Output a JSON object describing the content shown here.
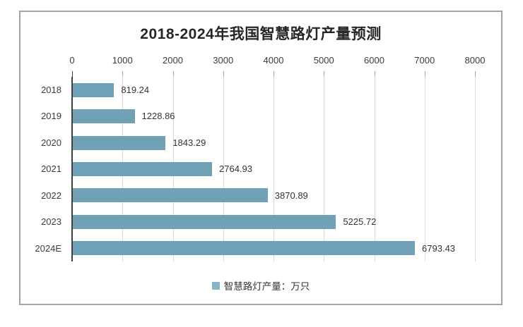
{
  "chart_data": {
    "type": "bar",
    "orientation": "horizontal",
    "title": "2018-2024年我国智慧路灯产量预测",
    "categories": [
      "2018",
      "2019",
      "2020",
      "2021",
      "2022",
      "2023",
      "2024E"
    ],
    "values": [
      819.24,
      1228.86,
      1843.29,
      2764.93,
      3870.89,
      5225.72,
      6793.43
    ],
    "value_labels": [
      "819.24",
      "1228.86",
      "1843.29",
      "2764.93",
      "3870.89",
      "5225.72",
      "6793.43"
    ],
    "xlabel": "",
    "ylabel": "",
    "xlim": [
      0,
      8000
    ],
    "x_ticks": [
      0,
      1000,
      2000,
      3000,
      4000,
      5000,
      6000,
      7000,
      8000
    ],
    "x_tick_labels": [
      "0",
      "1000",
      "2000",
      "3000",
      "4000",
      "5000",
      "6000",
      "7000",
      "8000"
    ],
    "x_axis_position": "top",
    "grid": true,
    "legend_position": "bottom",
    "legend_entries": [
      "智慧路灯产量：万只"
    ],
    "colors": {
      "bar": "#71a1b5",
      "legend_marker": "#8ab3c6",
      "grid": "#d9d9d9",
      "axis_line": "#404040",
      "tick": "#a6a6a6",
      "border": "#a3a3a3",
      "text": "#333333",
      "title_text": "#262626"
    }
  }
}
